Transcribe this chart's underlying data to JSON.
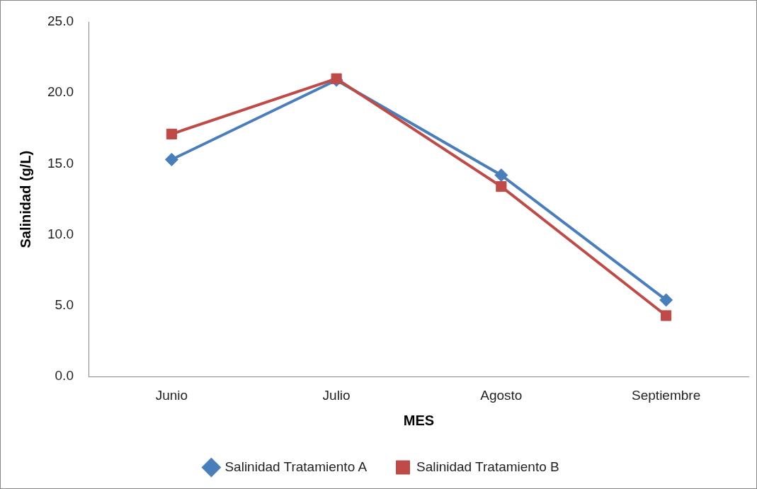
{
  "chart_data": {
    "type": "line",
    "xlabel": "MES",
    "ylabel": "Salinidad (g/L)",
    "categories": [
      "Junio",
      "Julio",
      "Agosto",
      "Septiembre"
    ],
    "series": [
      {
        "name": "Salinidad Tratamiento A",
        "color": "#4a7ebb",
        "marker": "diamond",
        "values": [
          15.3,
          20.9,
          14.2,
          5.4
        ]
      },
      {
        "name": "Salinidad Tratamiento B",
        "color": "#be4b48",
        "marker": "square",
        "values": [
          17.1,
          21.0,
          13.4,
          4.3
        ]
      }
    ],
    "ylim": [
      0,
      25
    ],
    "yticks": [
      {
        "value": 0,
        "label": "0.0"
      },
      {
        "value": 5,
        "label": "5.0"
      },
      {
        "value": 10,
        "label": "10.0"
      },
      {
        "value": 15,
        "label": "15.0"
      },
      {
        "value": 20,
        "label": "20.0"
      },
      {
        "value": 25,
        "label": "25.0"
      }
    ],
    "grid": false,
    "legend": "bottom",
    "line_style": "solid"
  }
}
